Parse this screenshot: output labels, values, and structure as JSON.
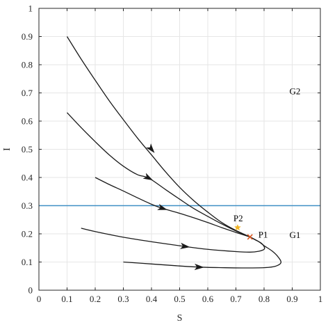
{
  "chart_data": {
    "type": "line",
    "title": "",
    "xlabel": "S",
    "ylabel": "I",
    "xlim": [
      0,
      1
    ],
    "ylim": [
      0,
      1
    ],
    "grid": true,
    "xticks": [
      "0",
      "0.1",
      "0.2",
      "0.3",
      "0.4",
      "0.5",
      "0.6",
      "0.7",
      "0.8",
      "0.9",
      "1"
    ],
    "yticks": [
      "0",
      "0.1",
      "0.2",
      "0.3",
      "0.4",
      "0.5",
      "0.6",
      "0.7",
      "0.8",
      "0.9",
      "1"
    ],
    "threshold": {
      "y": 0.3,
      "color": "#3f8fc4"
    },
    "trajectories": [
      {
        "color": "#1a1a1a",
        "arrow_at": [
          0.4,
          0.5
        ],
        "points": [
          [
            0.1,
            0.9
          ],
          [
            0.15,
            0.82
          ],
          [
            0.2,
            0.745
          ],
          [
            0.25,
            0.672
          ],
          [
            0.3,
            0.605
          ],
          [
            0.35,
            0.54
          ],
          [
            0.4,
            0.48
          ],
          [
            0.45,
            0.42
          ],
          [
            0.5,
            0.365
          ],
          [
            0.55,
            0.318
          ],
          [
            0.6,
            0.277
          ],
          [
            0.65,
            0.24
          ],
          [
            0.7,
            0.212
          ],
          [
            0.75,
            0.189
          ]
        ]
      },
      {
        "color": "#1a1a1a",
        "arrow_at": [
          0.39,
          0.398
        ],
        "points": [
          [
            0.1,
            0.63
          ],
          [
            0.15,
            0.577
          ],
          [
            0.2,
            0.527
          ],
          [
            0.25,
            0.48
          ],
          [
            0.3,
            0.44
          ],
          [
            0.35,
            0.41
          ],
          [
            0.39,
            0.398
          ],
          [
            0.45,
            0.357
          ],
          [
            0.5,
            0.323
          ],
          [
            0.55,
            0.29
          ],
          [
            0.6,
            0.262
          ],
          [
            0.65,
            0.235
          ],
          [
            0.7,
            0.21
          ],
          [
            0.75,
            0.189
          ]
        ]
      },
      {
        "color": "#1a1a1a",
        "arrow_at": [
          0.44,
          0.29
        ],
        "points": [
          [
            0.2,
            0.4
          ],
          [
            0.25,
            0.375
          ],
          [
            0.3,
            0.352
          ],
          [
            0.35,
            0.328
          ],
          [
            0.4,
            0.305
          ],
          [
            0.44,
            0.29
          ],
          [
            0.5,
            0.273
          ],
          [
            0.55,
            0.257
          ],
          [
            0.6,
            0.24
          ],
          [
            0.65,
            0.222
          ],
          [
            0.7,
            0.205
          ],
          [
            0.75,
            0.189
          ]
        ]
      },
      {
        "color": "#1a1a1a",
        "arrow_at": [
          0.52,
          0.155
        ],
        "points": [
          [
            0.15,
            0.22
          ],
          [
            0.2,
            0.208
          ],
          [
            0.3,
            0.188
          ],
          [
            0.4,
            0.172
          ],
          [
            0.52,
            0.155
          ],
          [
            0.6,
            0.145
          ],
          [
            0.7,
            0.137
          ],
          [
            0.75,
            0.135
          ],
          [
            0.78,
            0.138
          ],
          [
            0.8,
            0.145
          ],
          [
            0.8,
            0.155
          ],
          [
            0.79,
            0.167
          ],
          [
            0.77,
            0.178
          ],
          [
            0.75,
            0.189
          ]
        ]
      },
      {
        "color": "#1a1a1a",
        "arrow_at": [
          0.57,
          0.082
        ],
        "points": [
          [
            0.3,
            0.1
          ],
          [
            0.4,
            0.093
          ],
          [
            0.5,
            0.086
          ],
          [
            0.57,
            0.082
          ],
          [
            0.65,
            0.08
          ],
          [
            0.72,
            0.079
          ],
          [
            0.8,
            0.08
          ],
          [
            0.84,
            0.085
          ],
          [
            0.86,
            0.098
          ],
          [
            0.85,
            0.118
          ],
          [
            0.83,
            0.138
          ],
          [
            0.8,
            0.158
          ],
          [
            0.78,
            0.173
          ],
          [
            0.75,
            0.189
          ]
        ]
      }
    ],
    "points": [
      {
        "label": "P1",
        "x": 0.75,
        "y": 0.189,
        "color": "#d9541e",
        "marker": "x"
      },
      {
        "label": "P2",
        "x": 0.706,
        "y": 0.222,
        "color": "#f0b323",
        "marker": "star"
      }
    ],
    "annotations": [
      {
        "text": "G2",
        "x": 0.91,
        "y": 0.705
      },
      {
        "text": "G1",
        "x": 0.91,
        "y": 0.195
      }
    ]
  }
}
